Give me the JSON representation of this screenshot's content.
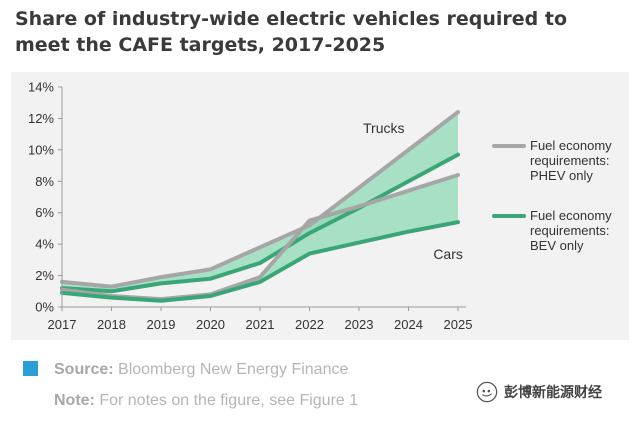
{
  "title": "Share of industry-wide electric vehicles required to meet the CAFE targets, 2017-2025",
  "chart_data": {
    "type": "area",
    "x": [
      "2017",
      "2018",
      "2019",
      "2020",
      "2021",
      "2022",
      "2023",
      "2024",
      "2025"
    ],
    "ylim": [
      0,
      14
    ],
    "yticks": [
      "0%",
      "2%",
      "4%",
      "6%",
      "8%",
      "10%",
      "12%",
      "14%"
    ],
    "grid": false,
    "series": [
      {
        "name": "Fuel economy requirements: PHEV only",
        "group": "Trucks",
        "values": [
          1.6,
          1.3,
          1.9,
          2.4,
          3.8,
          5.2,
          7.6,
          10.0,
          12.4
        ]
      },
      {
        "name": "Fuel economy requirements: BEV only",
        "group": "Trucks",
        "values": [
          1.2,
          1.0,
          1.5,
          1.8,
          2.8,
          4.7,
          6.3,
          8.0,
          9.7
        ]
      },
      {
        "name": "Fuel economy requirements: PHEV only",
        "group": "Cars",
        "values": [
          1.1,
          0.7,
          0.5,
          0.8,
          1.9,
          5.5,
          6.4,
          7.4,
          8.4
        ]
      },
      {
        "name": "Fuel economy requirements: BEV only",
        "group": "Cars",
        "values": [
          0.9,
          0.6,
          0.4,
          0.7,
          1.6,
          3.4,
          4.1,
          4.8,
          5.4
        ]
      }
    ],
    "annotations": [
      "Trucks",
      "Cars"
    ],
    "legend": {
      "placement": "right",
      "entries": [
        {
          "lines": [
            "Fuel economy",
            "requirements:",
            "PHEV only"
          ],
          "color": "#a6a6a6"
        },
        {
          "lines": [
            "Fuel economy",
            "requirements:",
            "BEV only"
          ],
          "color": "#3aa678"
        }
      ]
    },
    "colors": {
      "phev": "#a6a6a6",
      "bev": "#3aa678",
      "band": "#8fd9b6",
      "axis": "#999999"
    }
  },
  "footer": {
    "source_label": "Source:",
    "source_text": " Bloomberg New Energy Finance",
    "note_label": "Note:",
    "note_text": " For notes on the figure, see Figure 1",
    "square_color": "#2a9fd6"
  },
  "watermark": {
    "text": "彭博新能源财经"
  }
}
